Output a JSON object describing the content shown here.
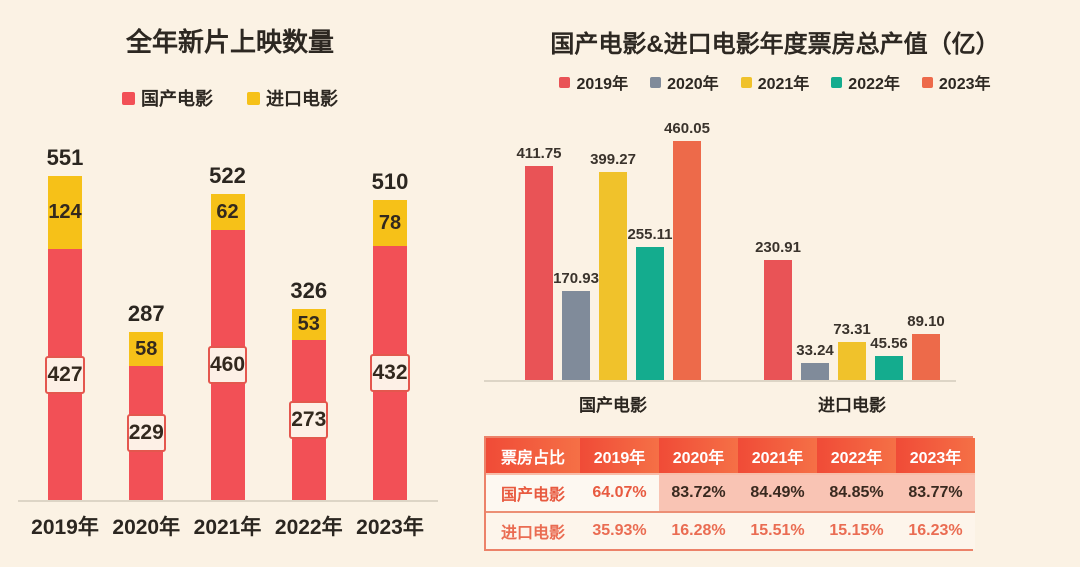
{
  "background": "#fbf2e4",
  "chart_data": [
    {
      "type": "bar",
      "variant": "stacked",
      "title": "全年新片上映数量",
      "categories": [
        "2019年",
        "2020年",
        "2021年",
        "2022年",
        "2023年"
      ],
      "series": [
        {
          "name": "国产电影",
          "color": "#f25056",
          "values": [
            427,
            229,
            460,
            273,
            432
          ]
        },
        {
          "name": "进口电影",
          "color": "#f6c118",
          "values": [
            124,
            58,
            62,
            53,
            78
          ]
        }
      ],
      "totals": [
        551,
        287,
        522,
        326,
        510
      ],
      "legend_position": "top",
      "grid": false,
      "value_labels": "inside-segments-and-total-above"
    },
    {
      "type": "bar",
      "variant": "grouped",
      "title": "国产电影&进口电影年度票房总产值（亿）",
      "categories": [
        "国产电影",
        "进口电影"
      ],
      "series": [
        {
          "name": "2019年",
          "color": "#e95356",
          "values": [
            411.75,
            230.91
          ]
        },
        {
          "name": "2020年",
          "color": "#808b9a",
          "values": [
            170.93,
            33.24
          ]
        },
        {
          "name": "2021年",
          "color": "#f0c22b",
          "values": [
            399.27,
            73.31
          ]
        },
        {
          "name": "2022年",
          "color": "#14ac8e",
          "values": [
            255.11,
            45.56
          ]
        },
        {
          "name": "2023年",
          "color": "#ed6a4a",
          "values": [
            460.05,
            89.1
          ]
        }
      ],
      "legend_position": "top",
      "grid": false,
      "value_labels": "above-bars"
    },
    {
      "type": "table",
      "header": [
        "票房占比",
        "2019年",
        "2020年",
        "2021年",
        "2022年",
        "2023年"
      ],
      "rows": [
        {
          "label": "国产电影",
          "values": [
            "64.07%",
            "83.72%",
            "84.49%",
            "84.85%",
            "83.77%"
          ]
        },
        {
          "label": "进口电影",
          "values": [
            "35.93%",
            "16.28%",
            "15.51%",
            "15.15%",
            "16.23%"
          ]
        }
      ]
    }
  ]
}
